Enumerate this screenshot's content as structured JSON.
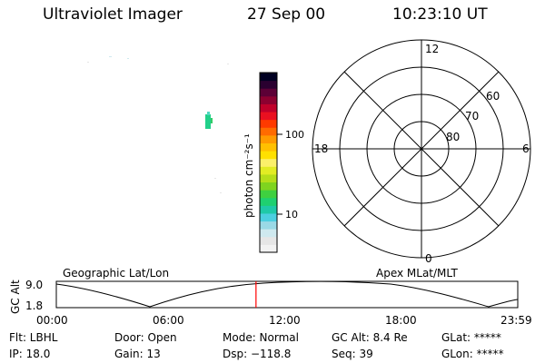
{
  "header": {
    "title": "Ultraviolet Imager",
    "date": "27 Sep 00",
    "time": "10:23:10 UT"
  },
  "colorbar": {
    "unit_label": "photon cm⁻²s⁻¹",
    "ticks": [
      "100",
      "10"
    ],
    "colors": [
      "#f2f2f2",
      "#e6e6e6",
      "#cfe9ef",
      "#9ad9e6",
      "#4ccfe0",
      "#1fc9a8",
      "#1fd070",
      "#3fd040",
      "#7fd41f",
      "#b5de1a",
      "#e2ec24",
      "#fbf06a",
      "#ffe100",
      "#ffc000",
      "#ff9a00",
      "#ff6b00",
      "#ff3a00",
      "#ea1020",
      "#c0002a",
      "#8c0030",
      "#5c0036",
      "#2a0030",
      "#000022"
    ]
  },
  "polar": {
    "lat_labels": [
      "80",
      "70",
      "60"
    ],
    "mlt_labels": {
      "top": "12",
      "left": "18",
      "right": "6",
      "bottom": "0"
    }
  },
  "timeline": {
    "left_label": "Geographic Lat/Lon",
    "right_label": "Apex MLat/MLT",
    "y_axis_label": "GC Alt",
    "y_ticks": [
      "9.0",
      "1.8"
    ],
    "x_ticks": [
      "00:00",
      "06:00",
      "12:00",
      "18:00",
      "23:59"
    ],
    "current_time_hours": 10.386
  },
  "info": {
    "row1": {
      "flt": "Flt: LBHL",
      "door": "Door: Open",
      "mode": "Mode: Normal",
      "gcalt": "GC Alt: 8.4 Re",
      "glat": "GLat: *****"
    },
    "row2": {
      "ip": "IP: 18.0",
      "gain": "Gain: 13",
      "dsp": "Dsp: −118.8",
      "seq": "Seq: 39",
      "glon": "GLon: *****"
    }
  }
}
